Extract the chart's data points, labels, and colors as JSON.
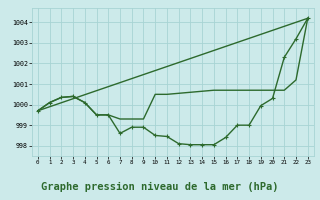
{
  "line1_x": [
    0,
    1,
    2,
    3,
    4,
    5,
    6,
    7,
    8,
    9,
    10,
    11,
    12,
    13,
    14,
    15,
    16,
    17,
    18,
    19,
    20,
    21,
    22,
    23
  ],
  "line1_y": [
    999.7,
    1000.1,
    1000.35,
    1000.4,
    1000.1,
    999.5,
    999.5,
    998.6,
    998.9,
    998.9,
    998.5,
    998.45,
    998.1,
    998.05,
    998.05,
    998.05,
    998.4,
    999.0,
    999.0,
    999.95,
    1000.3,
    1002.3,
    1003.2,
    1004.2
  ],
  "line2_x": [
    0,
    1,
    2,
    3,
    4,
    5,
    6,
    7,
    8,
    9,
    10,
    11,
    12,
    13,
    14,
    15,
    16,
    17,
    18,
    19,
    20,
    21,
    22,
    23
  ],
  "line2_y": [
    999.7,
    1000.1,
    1000.35,
    1000.4,
    1000.1,
    999.5,
    999.5,
    999.3,
    999.3,
    999.3,
    1000.5,
    1000.5,
    1000.55,
    1000.6,
    1000.65,
    1000.7,
    1000.7,
    1000.7,
    1000.7,
    1000.7,
    1000.7,
    1000.7,
    1001.2,
    1004.2
  ],
  "line3_x": [
    0,
    23
  ],
  "line3_y": [
    999.7,
    1004.2
  ],
  "color": "#2d6a2d",
  "bg_color": "#cceaea",
  "grid_color": "#a8d4d4",
  "title": "Graphe pression niveau de la mer (hPa)",
  "title_fontsize": 7.5,
  "ylim": [
    997.5,
    1004.7
  ],
  "xlim": [
    -0.5,
    23.5
  ],
  "yticks": [
    998,
    999,
    1000,
    1001,
    1002,
    1003,
    1004
  ],
  "xticks": [
    0,
    1,
    2,
    3,
    4,
    5,
    6,
    7,
    8,
    9,
    10,
    11,
    12,
    13,
    14,
    15,
    16,
    17,
    18,
    19,
    20,
    21,
    22,
    23
  ]
}
